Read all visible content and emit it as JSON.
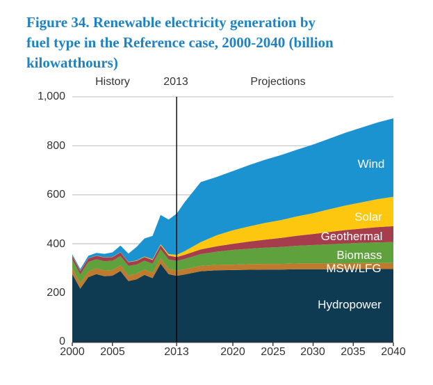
{
  "figure": {
    "title_lines": [
      "Figure 34. Renewable electricity generation by",
      "fuel type in the Reference case, 2000-2040 (billion",
      "kilowatthours)"
    ],
    "title_color": "#1e83c4"
  },
  "header": {
    "history_label": "History",
    "divider_label": "2013",
    "projections_label": "Projections"
  },
  "chart_data": {
    "type": "area",
    "stacked": true,
    "title": "Renewable electricity generation by fuel type in the Reference case, 2000-2040",
    "unit": "billion kilowatthours",
    "xlabel": "",
    "ylabel": "",
    "xlim": [
      2000,
      2040
    ],
    "ylim": [
      0,
      1000
    ],
    "grid": true,
    "divider_year": 2013,
    "x": [
      2000,
      2001,
      2002,
      2003,
      2004,
      2005,
      2006,
      2007,
      2008,
      2009,
      2010,
      2011,
      2012,
      2013,
      2014,
      2016,
      2018,
      2020,
      2022,
      2024,
      2026,
      2028,
      2030,
      2032,
      2034,
      2036,
      2038,
      2040
    ],
    "series": [
      {
        "name": "Hydropower",
        "color": "#0e3a52",
        "values": [
          276,
          217,
          264,
          276,
          268,
          270,
          289,
          248,
          255,
          273,
          260,
          319,
          276,
          269,
          275,
          288,
          292,
          293,
          294,
          295,
          295,
          296,
          296,
          296,
          297,
          297,
          297,
          297
        ]
      },
      {
        "name": "MSW/LFG",
        "color": "#c07a2d",
        "values": [
          23,
          23,
          23,
          24,
          23,
          23,
          23,
          23,
          23,
          22,
          22,
          22,
          22,
          21,
          21,
          22,
          22,
          22,
          23,
          23,
          23,
          24,
          24,
          24,
          24,
          25,
          25,
          25
        ]
      },
      {
        "name": "Biomass",
        "color": "#5fa13c",
        "values": [
          37,
          35,
          39,
          37,
          38,
          38,
          38,
          39,
          37,
          36,
          37,
          37,
          38,
          40,
          42,
          48,
          54,
          60,
          63,
          66,
          69,
          72,
          75,
          78,
          80,
          82,
          84,
          85
        ]
      },
      {
        "name": "Geothermal",
        "color": "#a63d4d",
        "values": [
          14,
          14,
          14,
          14,
          15,
          15,
          15,
          15,
          15,
          15,
          15,
          16,
          16,
          16,
          17,
          19,
          22,
          25,
          29,
          33,
          37,
          41,
          45,
          50,
          55,
          58,
          62,
          65
        ]
      },
      {
        "name": "Solar",
        "color": "#fdc60f",
        "values": [
          1,
          1,
          1,
          1,
          1,
          1,
          1,
          1,
          2,
          2,
          3,
          4,
          6,
          9,
          15,
          30,
          45,
          55,
          62,
          68,
          73,
          79,
          85,
          93,
          100,
          107,
          114,
          120
        ]
      },
      {
        "name": "Wind",
        "color": "#1b93d0",
        "values": [
          6,
          7,
          10,
          11,
          14,
          18,
          27,
          34,
          55,
          74,
          95,
          120,
          141,
          168,
          200,
          245,
          238,
          242,
          250,
          258,
          265,
          272,
          280,
          288,
          297,
          305,
          313,
          320
        ]
      }
    ],
    "ytick_labels": [
      "0",
      "200",
      "400",
      "600",
      "800",
      "1,000"
    ],
    "ytick_values": [
      0,
      200,
      400,
      600,
      800,
      1000
    ],
    "xtick_labels": [
      "2000",
      "2005",
      "2013",
      "2020",
      "2025",
      "2030",
      "2035",
      "2040"
    ],
    "xtick_values": [
      2000,
      2005,
      2013,
      2020,
      2025,
      2030,
      2035,
      2040
    ],
    "area_labels": {
      "wind": "Wind",
      "solar": "Solar",
      "geothermal": "Geothermal",
      "biomass": "Biomass",
      "msw_lfg": "MSW/LFG",
      "hydropower": "Hydropower"
    },
    "colors": {
      "gridline": "#c9c9c9",
      "axis": "#333333",
      "divider_line": "#000000",
      "label_text": "#ffffff"
    }
  }
}
